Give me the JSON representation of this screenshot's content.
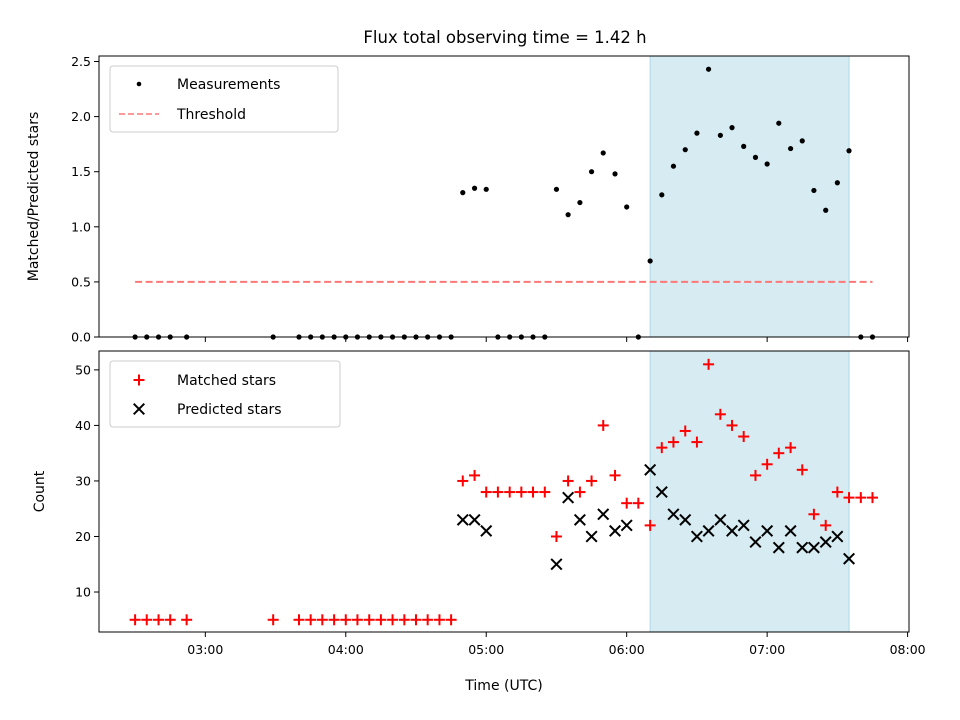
{
  "chart_data": {
    "title": "Flux total observing time = 1.42 h",
    "xlabel": "Time (UTC)",
    "x_ticks": [
      "03:00",
      "04:00",
      "05:00",
      "06:00",
      "07:00",
      "08:00"
    ],
    "x_tick_hours": [
      3,
      4,
      5,
      6,
      7,
      8
    ],
    "xlim_hours": [
      2.243,
      8.01
    ],
    "highlight_span_hours": [
      6.167,
      7.583
    ],
    "highlight_color": "#add8e6",
    "panels": [
      {
        "type": "scatter",
        "ylabel": "Matched/Predicted stars",
        "ylim": [
          0,
          2.55
        ],
        "y_ticks": [
          0.0,
          0.5,
          1.0,
          1.5,
          2.0,
          2.5
        ],
        "y_tick_labels": [
          "0.0",
          "0.5",
          "1.0",
          "1.5",
          "2.0",
          "2.5"
        ],
        "legend_position": "upper-left",
        "series": [
          {
            "name": "Measurements",
            "marker": "dot",
            "color": "#000000",
            "x": [
              2.5,
              2.583,
              2.667,
              2.75,
              2.867,
              3.483,
              3.667,
              3.75,
              3.833,
              3.917,
              4.0,
              4.083,
              4.167,
              4.25,
              4.333,
              4.417,
              4.5,
              4.583,
              4.667,
              4.75,
              4.833,
              4.917,
              5.0,
              5.083,
              5.167,
              5.25,
              5.333,
              5.417,
              5.5,
              5.583,
              5.667,
              5.75,
              5.833,
              5.917,
              6.0,
              6.083,
              6.167,
              6.25,
              6.333,
              6.417,
              6.5,
              6.583,
              6.667,
              6.75,
              6.833,
              6.917,
              7.0,
              7.083,
              7.167,
              7.25,
              7.333,
              7.417,
              7.5,
              7.583,
              7.667,
              7.75
            ],
            "y": [
              0,
              0,
              0,
              0,
              0,
              0,
              0,
              0,
              0,
              0,
              0,
              0,
              0,
              0,
              0,
              0,
              0,
              0,
              0,
              0,
              1.31,
              1.35,
              1.34,
              0,
              0,
              0,
              0,
              0,
              1.34,
              1.11,
              1.22,
              1.5,
              1.67,
              1.48,
              1.18,
              0,
              0.69,
              1.29,
              1.55,
              1.7,
              1.85,
              2.43,
              1.83,
              1.9,
              1.73,
              1.63,
              1.57,
              1.94,
              1.71,
              1.78,
              1.33,
              1.15,
              1.4,
              1.69,
              0,
              0
            ]
          },
          {
            "name": "Threshold",
            "line": "dashed",
            "color": "#ff7777",
            "x": [
              2.5,
              7.75
            ],
            "y": [
              0.5,
              0.5
            ]
          }
        ]
      },
      {
        "type": "scatter",
        "ylabel": "Count",
        "ylim": [
          2.8,
          53.4
        ],
        "y_ticks": [
          10,
          20,
          30,
          40,
          50
        ],
        "y_tick_labels": [
          "10",
          "20",
          "30",
          "40",
          "50"
        ],
        "legend_position": "upper-left",
        "series": [
          {
            "name": "Matched stars",
            "marker": "plus",
            "color": "#ff0000",
            "x": [
              2.5,
              2.583,
              2.667,
              2.75,
              2.867,
              3.483,
              3.667,
              3.75,
              3.833,
              3.917,
              4.0,
              4.083,
              4.167,
              4.25,
              4.333,
              4.417,
              4.5,
              4.583,
              4.667,
              4.75,
              4.833,
              4.917,
              5.0,
              5.083,
              5.167,
              5.25,
              5.333,
              5.417,
              5.5,
              5.583,
              5.667,
              5.75,
              5.833,
              5.917,
              6.0,
              6.083,
              6.167,
              6.25,
              6.333,
              6.417,
              6.5,
              6.583,
              6.667,
              6.75,
              6.833,
              6.917,
              7.0,
              7.083,
              7.167,
              7.25,
              7.333,
              7.417,
              7.5,
              7.583,
              7.667,
              7.75
            ],
            "y": [
              5,
              5,
              5,
              5,
              5,
              5,
              5,
              5,
              5,
              5,
              5,
              5,
              5,
              5,
              5,
              5,
              5,
              5,
              5,
              5,
              30,
              31,
              28,
              28,
              28,
              28,
              28,
              28,
              20,
              30,
              28,
              30,
              40,
              31,
              26,
              26,
              22,
              36,
              37,
              39,
              37,
              51,
              42,
              40,
              38,
              31,
              33,
              35,
              36,
              32,
              24,
              22,
              28,
              27,
              27,
              27
            ]
          },
          {
            "name": "Predicted stars",
            "marker": "x",
            "color": "#000000",
            "x": [
              4.833,
              4.917,
              5.0,
              5.5,
              5.583,
              5.667,
              5.75,
              5.833,
              5.917,
              6.0,
              6.167,
              6.25,
              6.333,
              6.417,
              6.5,
              6.583,
              6.667,
              6.75,
              6.833,
              6.917,
              7.0,
              7.083,
              7.167,
              7.25,
              7.333,
              7.417,
              7.5,
              7.583
            ],
            "y": [
              23,
              23,
              21,
              15,
              27,
              23,
              20,
              24,
              21,
              22,
              32,
              28,
              24,
              23,
              20,
              21,
              23,
              21,
              22,
              19,
              21,
              18,
              21,
              18,
              18,
              19,
              20,
              16
            ]
          }
        ]
      }
    ]
  }
}
